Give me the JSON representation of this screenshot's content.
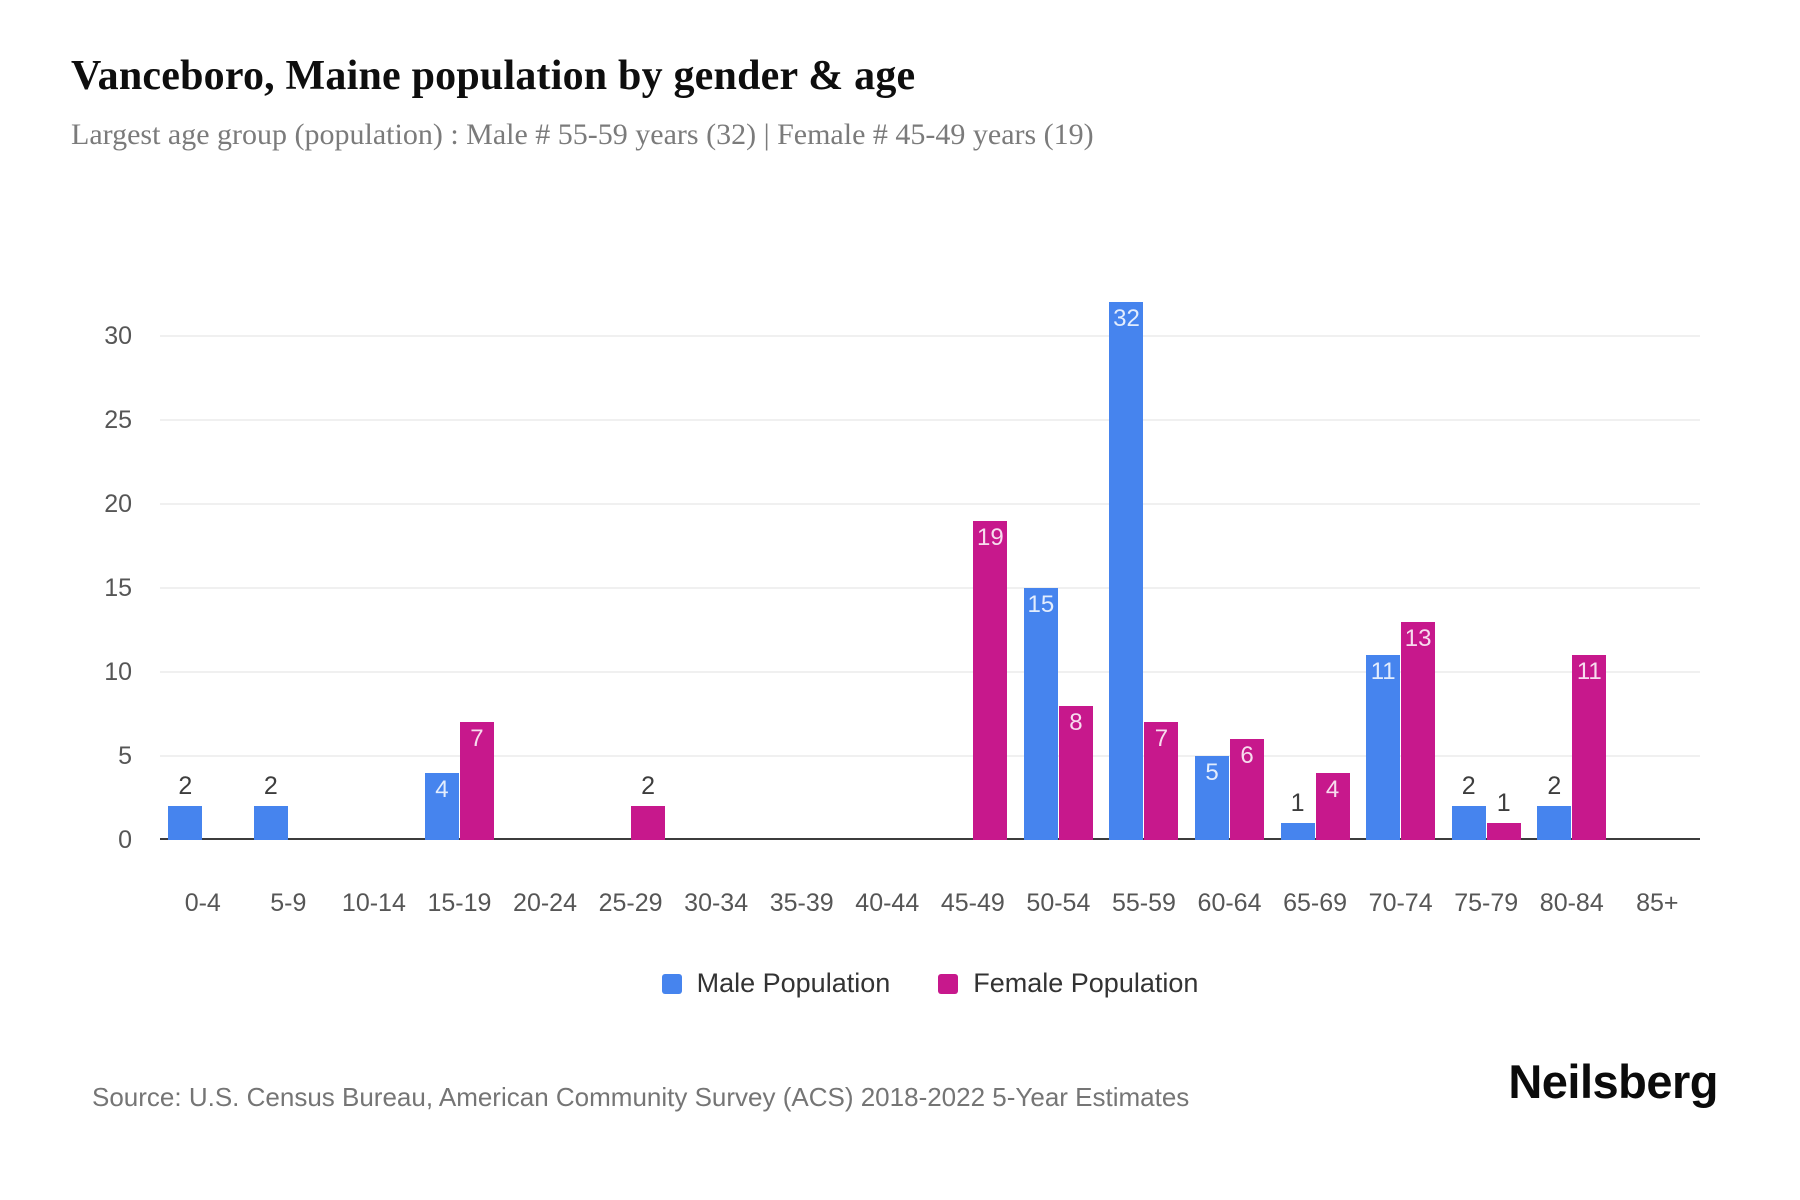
{
  "header": {
    "title": "Vanceboro, Maine population by gender & age",
    "subtitle": "Largest age group (population) : Male # 55-59 years (32) | Female # 45-49 years (19)"
  },
  "chart_data": {
    "type": "bar",
    "title": "Vanceboro, Maine population by gender & age",
    "xlabel": "",
    "ylabel": "",
    "categories": [
      "0-4",
      "5-9",
      "10-14",
      "15-19",
      "20-24",
      "25-29",
      "30-34",
      "35-39",
      "40-44",
      "45-49",
      "50-54",
      "55-59",
      "60-64",
      "65-69",
      "70-74",
      "75-79",
      "80-84",
      "85+"
    ],
    "series": [
      {
        "name": "Male Population",
        "color": "#4684ee",
        "values": [
          2,
          2,
          0,
          4,
          0,
          0,
          0,
          0,
          0,
          0,
          15,
          32,
          5,
          1,
          11,
          2,
          2,
          0
        ]
      },
      {
        "name": "Female Population",
        "color": "#c7188c",
        "values": [
          0,
          0,
          0,
          7,
          0,
          2,
          0,
          0,
          0,
          19,
          8,
          7,
          6,
          4,
          13,
          1,
          11,
          0
        ]
      }
    ],
    "yticks": [
      0,
      5,
      10,
      15,
      20,
      25,
      30
    ],
    "ylim": [
      0,
      36
    ],
    "grid": true,
    "legend_position": "bottom",
    "labels": {
      "inside_min": 4
    }
  },
  "footer": {
    "source": "Source: U.S. Census Bureau, American Community Survey (ACS) 2018-2022 5-Year Estimates",
    "brand": "Neilsberg"
  },
  "colors": {
    "male": "#4684ee",
    "female": "#c7188c",
    "gridline": "#f0f0f0",
    "axis_line": "#3c3c3c",
    "tick_text": "#565656",
    "subtitle_text": "#7b7b7b"
  }
}
